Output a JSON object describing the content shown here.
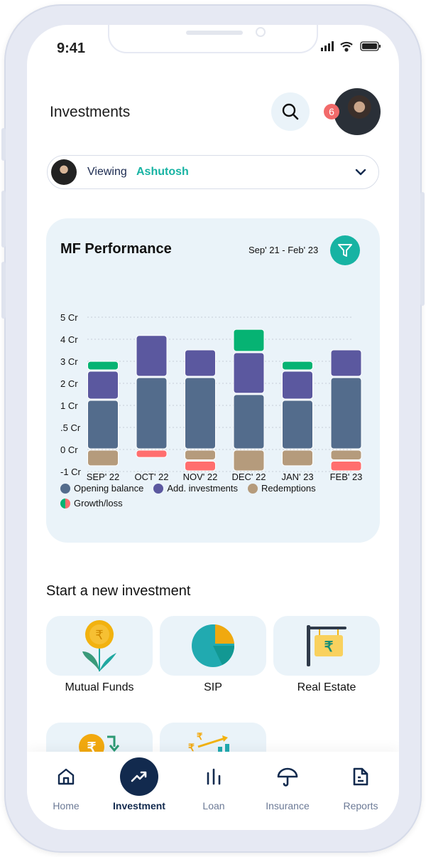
{
  "status": {
    "time": "9:41"
  },
  "header": {
    "title": "Investments",
    "notification_count": "6"
  },
  "viewing": {
    "label": "Viewing",
    "name": "Ashutosh"
  },
  "performance": {
    "title": "MF Performance",
    "range": "Sep' 21 - Feb' 23"
  },
  "chart_data": {
    "type": "bar",
    "stacked": true,
    "title": "MF Performance",
    "unit": "Cr",
    "categories": [
      "SEP' 22",
      "OCT' 22",
      "NOV' 22",
      "DEC' 22",
      "JAN' 23",
      "FEB' 23"
    ],
    "ytick_labels": [
      "5 Cr",
      "4 Cr",
      "3 Cr",
      "2 Cr",
      "1 Cr",
      ".5 Cr",
      "0 Cr",
      "-1 Cr"
    ],
    "ytick_values": [
      5,
      4,
      3,
      2,
      1,
      0.5,
      0,
      -1
    ],
    "series": [
      {
        "name": "Opening balance",
        "color": "#536c8c",
        "values": [
          1.26,
          2.29,
          2.29,
          1.52,
          1.26,
          2.29
        ]
      },
      {
        "name": "Add. investments",
        "color": "#5b589f",
        "values": [
          1.32,
          1.91,
          1.26,
          1.9,
          1.32,
          1.26
        ]
      },
      {
        "name": "Redemptions",
        "color": "#b59b7c",
        "values": [
          -0.77,
          0,
          -0.5,
          -1.03,
          -0.77,
          -0.5
        ]
      },
      {
        "name": "Growth/loss",
        "color_gain": "#06b373",
        "color_loss": "#ff6e6e",
        "values": [
          0.45,
          -0.39,
          -0.65,
          1.06,
          0.45,
          -0.65
        ]
      }
    ],
    "grid": true,
    "legend": "bottom"
  },
  "new_investment": {
    "title": "Start a new investment",
    "items": [
      {
        "label": "Mutual Funds"
      },
      {
        "label": "SIP"
      },
      {
        "label": "Real Estate"
      }
    ]
  },
  "nav": [
    {
      "label": "Home"
    },
    {
      "label": "Investment"
    },
    {
      "label": "Loan"
    },
    {
      "label": "Insurance"
    },
    {
      "label": "Reports"
    }
  ]
}
